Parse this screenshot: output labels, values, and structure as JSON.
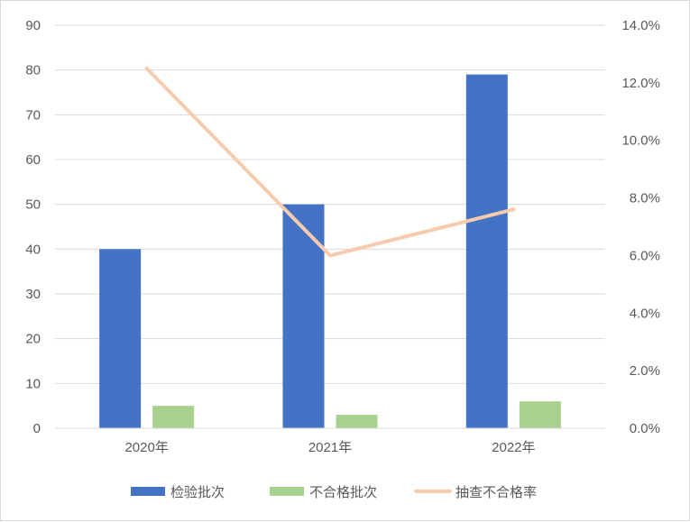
{
  "chart_data": {
    "type": "bar",
    "categories": [
      "2020年",
      "2021年",
      "2022年"
    ],
    "series": [
      {
        "name": "检验批次",
        "type": "bar",
        "axis": "left",
        "values": [
          40,
          50,
          79
        ],
        "color": "#4472c4"
      },
      {
        "name": "不合格批次",
        "type": "bar",
        "axis": "left",
        "values": [
          5,
          3,
          6
        ],
        "color": "#a9d18e"
      },
      {
        "name": "抽查不合格率",
        "type": "line",
        "axis": "right",
        "values": [
          0.125,
          0.06,
          0.076
        ],
        "color": "#f8cbad"
      }
    ],
    "left_axis": {
      "min": 0,
      "max": 90,
      "step": 10,
      "tick_labels": [
        "0",
        "10",
        "20",
        "30",
        "40",
        "50",
        "60",
        "70",
        "80",
        "90"
      ]
    },
    "right_axis": {
      "min": 0,
      "max": 0.14,
      "step": 0.02,
      "tick_labels": [
        "0.0%",
        "2.0%",
        "4.0%",
        "6.0%",
        "8.0%",
        "10.0%",
        "12.0%",
        "14.0%"
      ]
    },
    "grid": true,
    "legend_position": "bottom",
    "title": "",
    "xlabel": "",
    "ylabel": ""
  }
}
